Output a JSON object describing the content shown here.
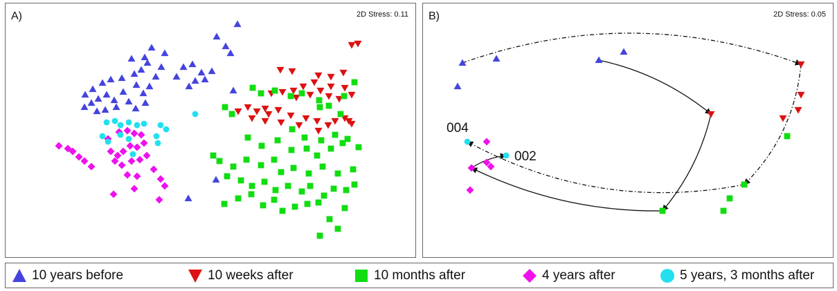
{
  "chart_data": [
    {
      "type": "scatter",
      "panel_label": "A)",
      "stress_label": "2D Stress: 0.11",
      "series": [
        {
          "name": "10 years before",
          "points": [
            [
              335,
              30
            ],
            [
              305,
              48
            ],
            [
              318,
              62
            ],
            [
              325,
              72
            ],
            [
              211,
              64
            ],
            [
              201,
              78
            ],
            [
              230,
              72
            ],
            [
              182,
              80
            ],
            [
              205,
              86
            ],
            [
              257,
              92
            ],
            [
              270,
              88
            ],
            [
              283,
              100
            ],
            [
              298,
              98
            ],
            [
              274,
              112
            ],
            [
              288,
              110
            ],
            [
              247,
              106
            ],
            [
              265,
              120
            ],
            [
              225,
              92
            ],
            [
              217,
              106
            ],
            [
              196,
              96
            ],
            [
              186,
              102
            ],
            [
              168,
              108
            ],
            [
              152,
              110
            ],
            [
              140,
              115
            ],
            [
              126,
              124
            ],
            [
              115,
              132
            ],
            [
              124,
              144
            ],
            [
              114,
              150
            ],
            [
              134,
              138
            ],
            [
              146,
              132
            ],
            [
              157,
              140
            ],
            [
              170,
              128
            ],
            [
              178,
              142
            ],
            [
              189,
              118
            ],
            [
              199,
              130
            ],
            [
              208,
              120
            ],
            [
              160,
              150
            ],
            [
              144,
              154
            ],
            [
              132,
              156
            ],
            [
              188,
              152
            ],
            [
              202,
              144
            ],
            [
              329,
              126
            ],
            [
              304,
              255
            ],
            [
              264,
              282
            ]
          ]
        },
        {
          "name": "10 weeks after",
          "points": [
            [
              509,
              58
            ],
            [
              500,
              60
            ],
            [
              397,
              96
            ],
            [
              414,
              98
            ],
            [
              452,
              104
            ],
            [
              470,
              106
            ],
            [
              488,
              100
            ],
            [
              446,
              114
            ],
            [
              430,
              120
            ],
            [
              416,
              126
            ],
            [
              400,
              128
            ],
            [
              384,
              130
            ],
            [
              470,
              120
            ],
            [
              490,
              122
            ],
            [
              455,
              126
            ],
            [
              482,
              138
            ],
            [
              467,
              134
            ],
            [
              440,
              132
            ],
            [
              500,
              132
            ],
            [
              420,
              136
            ],
            [
              350,
              150
            ],
            [
              363,
              156
            ],
            [
              375,
              152
            ],
            [
              394,
              154
            ],
            [
              412,
              162
            ],
            [
              434,
              166
            ],
            [
              450,
              170
            ],
            [
              466,
              176
            ],
            [
              476,
              170
            ],
            [
              490,
              166
            ],
            [
              496,
              170
            ],
            [
              500,
              174
            ],
            [
              336,
              156
            ],
            [
              356,
              166
            ],
            [
              375,
              170
            ],
            [
              398,
              172
            ],
            [
              424,
              176
            ],
            [
              452,
              184
            ],
            [
              380,
              160
            ]
          ]
        },
        {
          "name": "10 months after",
          "points": [
            [
              357,
              122
            ],
            [
              369,
              130
            ],
            [
              389,
              126
            ],
            [
              412,
              134
            ],
            [
              428,
              130
            ],
            [
              453,
              140
            ],
            [
              504,
              114
            ],
            [
              489,
              134
            ],
            [
              317,
              150
            ],
            [
              327,
              160
            ],
            [
              454,
              150
            ],
            [
              467,
              148
            ],
            [
              484,
              160
            ],
            [
              414,
              182
            ],
            [
              432,
              194
            ],
            [
              456,
              198
            ],
            [
              476,
              190
            ],
            [
              494,
              196
            ],
            [
              510,
              208
            ],
            [
              350,
              194
            ],
            [
              370,
              206
            ],
            [
              393,
              198
            ],
            [
              413,
              212
            ],
            [
              435,
              210
            ],
            [
              450,
              220
            ],
            [
              470,
              210
            ],
            [
              487,
              202
            ],
            [
              300,
              220
            ],
            [
              309,
              228
            ],
            [
              329,
              236
            ],
            [
              348,
              226
            ],
            [
              369,
              234
            ],
            [
              388,
              226
            ],
            [
              398,
              244
            ],
            [
              416,
              238
            ],
            [
              438,
              246
            ],
            [
              458,
              236
            ],
            [
              480,
              246
            ],
            [
              502,
              240
            ],
            [
              320,
              250
            ],
            [
              340,
              256
            ],
            [
              356,
              264
            ],
            [
              374,
              258
            ],
            [
              390,
              270
            ],
            [
              408,
              264
            ],
            [
              428,
              272
            ],
            [
              440,
              264
            ],
            [
              460,
              278
            ],
            [
              474,
              268
            ],
            [
              492,
              270
            ],
            [
              504,
              262
            ],
            [
              316,
              290
            ],
            [
              336,
              282
            ],
            [
              355,
              276
            ],
            [
              372,
              292
            ],
            [
              388,
              284
            ],
            [
              400,
              300
            ],
            [
              418,
              294
            ],
            [
              436,
              290
            ],
            [
              452,
              288
            ],
            [
              468,
              312
            ],
            [
              480,
              326
            ],
            [
              454,
              336
            ],
            [
              490,
              296
            ]
          ]
        },
        {
          "name": "4 years after",
          "points": [
            [
              77,
              206
            ],
            [
              90,
              210
            ],
            [
              97,
              214
            ],
            [
              106,
              222
            ],
            [
              114,
              228
            ],
            [
              124,
              236
            ],
            [
              148,
              196
            ],
            [
              164,
              186
            ],
            [
              176,
              184
            ],
            [
              186,
              188
            ],
            [
              196,
              190
            ],
            [
              152,
              214
            ],
            [
              162,
              220
            ],
            [
              170,
              214
            ],
            [
              180,
              206
            ],
            [
              190,
              208
            ],
            [
              200,
              202
            ],
            [
              158,
              228
            ],
            [
              168,
              234
            ],
            [
              182,
              228
            ],
            [
              194,
              226
            ],
            [
              204,
              220
            ],
            [
              176,
              248
            ],
            [
              190,
              250
            ],
            [
              214,
              240
            ],
            [
              224,
              254
            ],
            [
              230,
              264
            ],
            [
              186,
              268
            ],
            [
              156,
              276
            ],
            [
              222,
              284
            ]
          ]
        },
        {
          "name": "5 years, 3 months after",
          "points": [
            [
              274,
              160
            ],
            [
              146,
              172
            ],
            [
              158,
              170
            ],
            [
              166,
              176
            ],
            [
              178,
              172
            ],
            [
              190,
              176
            ],
            [
              200,
              174
            ],
            [
              224,
              176
            ],
            [
              232,
              182
            ],
            [
              140,
              192
            ],
            [
              148,
              200
            ],
            [
              166,
              190
            ],
            [
              178,
              196
            ],
            [
              218,
              192
            ],
            [
              220,
              202
            ],
            [
              184,
              218
            ]
          ]
        }
      ],
      "arrows": []
    },
    {
      "type": "scatter",
      "panel_label": "B)",
      "stress_label": "2D Stress: 0.05",
      "series": [
        {
          "name": "10 years before",
          "points": [
            [
              57,
              86
            ],
            [
              106,
              80
            ],
            [
              254,
              82
            ],
            [
              290,
              70
            ],
            [
              50,
              120
            ]
          ]
        },
        {
          "name": "10 weeks after",
          "points": [
            [
              546,
              88
            ],
            [
              546,
              132
            ],
            [
              542,
              154
            ],
            [
              520,
              166
            ],
            [
              416,
              160
            ]
          ]
        },
        {
          "name": "10 months after",
          "points": [
            [
              526,
              192
            ],
            [
              464,
              262
            ],
            [
              443,
              282
            ],
            [
              434,
              300
            ],
            [
              346,
              300
            ]
          ]
        },
        {
          "name": "4 years after",
          "points": [
            [
              92,
              200
            ],
            [
              92,
              230
            ],
            [
              98,
              236
            ],
            [
              70,
              238
            ],
            [
              68,
              270
            ]
          ]
        },
        {
          "name": "5 years, 3 months after",
          "points": [
            [
              64,
              200
            ],
            [
              120,
              220
            ]
          ]
        }
      ],
      "point_labels": [
        {
          "text": "004",
          "x": 64,
          "y": 200
        },
        {
          "text": "002",
          "x": 120,
          "y": 220
        }
      ],
      "arrows": [
        {
          "from": [
            254,
            82
          ],
          "to": [
            416,
            160
          ],
          "style": "solid"
        },
        {
          "from": [
            416,
            160
          ],
          "to": [
            346,
            300
          ],
          "style": "solid"
        },
        {
          "from": [
            346,
            300
          ],
          "to": [
            70,
            238
          ],
          "style": "solid"
        },
        {
          "from": [
            70,
            238
          ],
          "to": [
            120,
            220
          ],
          "style": "solid"
        },
        {
          "from": [
            57,
            86
          ],
          "to": [
            546,
            88
          ],
          "style": "dashdot"
        },
        {
          "from": [
            546,
            88
          ],
          "to": [
            464,
            262
          ],
          "style": "dashdot"
        },
        {
          "from": [
            464,
            262
          ],
          "to": [
            64,
            200
          ],
          "style": "dashdot"
        }
      ]
    }
  ],
  "legend": [
    {
      "label": "10 years before",
      "marker": "triangle-up",
      "color": "#4444dd"
    },
    {
      "label": "10 weeks after",
      "marker": "triangle-down",
      "color": "#dd1111"
    },
    {
      "label": "10 months after",
      "marker": "square",
      "color": "#11dd11"
    },
    {
      "label": "4 years after",
      "marker": "diamond",
      "color": "#ee11ee"
    },
    {
      "label": "5 years, 3 months after",
      "marker": "circle",
      "color": "#22e0ee"
    }
  ]
}
